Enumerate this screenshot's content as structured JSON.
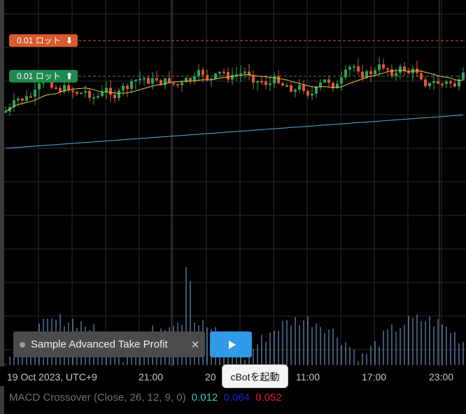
{
  "order_lines": {
    "sell": {
      "label": "0.01 ロット",
      "arrow": "⬇",
      "color": "#d95a2b"
    },
    "buy": {
      "label": "0.01 ロット",
      "arrow": "⬆",
      "color": "#1e8a50"
    }
  },
  "cbot": {
    "name": "Sample Advanced Take Profit",
    "close_icon": "✕",
    "play_icon": "play-icon",
    "play_tooltip": "cBotを起動"
  },
  "time_axis": {
    "labels": [
      "19 Oct 2023, UTC+9",
      "21:00",
      "20",
      "11:00",
      "17:00",
      "23:00"
    ]
  },
  "indicator": {
    "name": "MACD Crossover (Close, 26, 12, 9, 0)",
    "values": [
      {
        "value": "0.012",
        "color": "#3fc7c7"
      },
      {
        "value": "0.064",
        "color": "#2020d0"
      },
      {
        "value": "0.052",
        "color": "#e02020"
      }
    ]
  },
  "colors": {
    "bull": "#2fa35a",
    "bear": "#e4562f",
    "fast_ma": "#e8c54a",
    "slow_ma": "#5aaee0",
    "histogram": "#7aaee0",
    "grid": "#2a2a2a",
    "crosshair": "#555555"
  }
}
